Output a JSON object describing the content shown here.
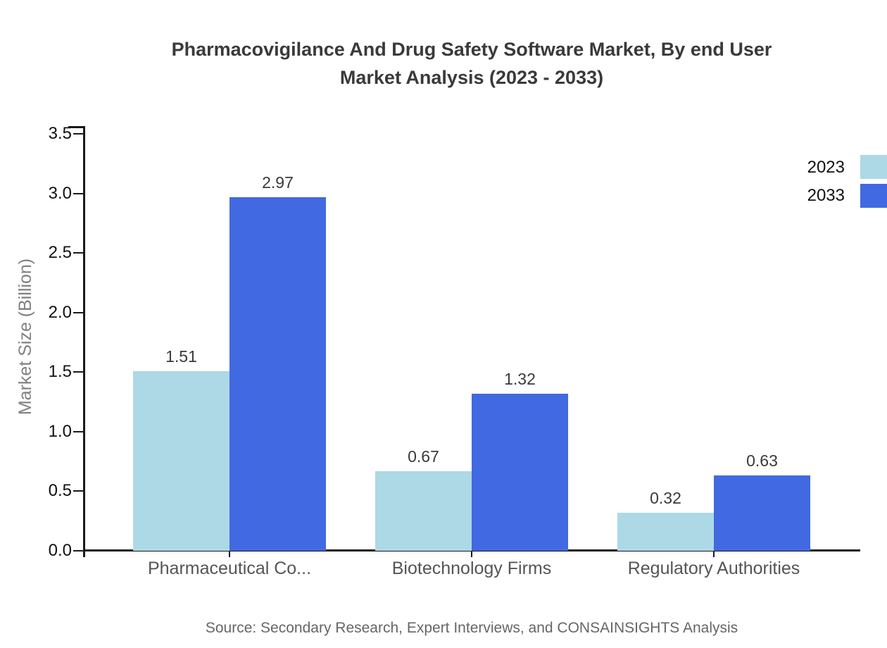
{
  "chart_data": {
    "type": "bar",
    "title": "Pharmacovigilance And Drug Safety Software Market, By end User Market Analysis (2023 - 2033)",
    "title_lines": [
      "Pharmacovigilance And Drug Safety Software Market, By end User",
      "Market Analysis (2023 - 2033)"
    ],
    "ylabel": "Market Size (Billion)",
    "xlabel": "",
    "categories": [
      "Pharmaceutical Co...",
      "Biotechnology Firms",
      "Regulatory Authorities"
    ],
    "series": [
      {
        "name": "2023",
        "color": "#add8e6",
        "values": [
          1.51,
          0.67,
          0.32
        ]
      },
      {
        "name": "2033",
        "color": "#4169e1",
        "values": [
          2.97,
          1.32,
          0.63
        ]
      }
    ],
    "value_labels": [
      [
        "1.51",
        "0.67",
        "0.32"
      ],
      [
        "2.97",
        "1.32",
        "0.63"
      ]
    ],
    "ylim": [
      0,
      3.5
    ],
    "yticks": [
      0,
      0.5,
      1,
      1.5,
      2,
      2.5,
      3,
      3.5
    ],
    "grid": false,
    "legend_position": "top-right",
    "source": "Source: Secondary Research, Expert Interviews, and CONSAINSIGHTS Analysis",
    "colors": {
      "axis": "#1a1a1a",
      "title_text": "#3a3a3a",
      "tick_text": "#111111",
      "category_text": "#555555",
      "value_text": "#3a3a3a",
      "ylabel_text": "#808080",
      "source_text": "#666666",
      "background": "#ffffff"
    }
  }
}
